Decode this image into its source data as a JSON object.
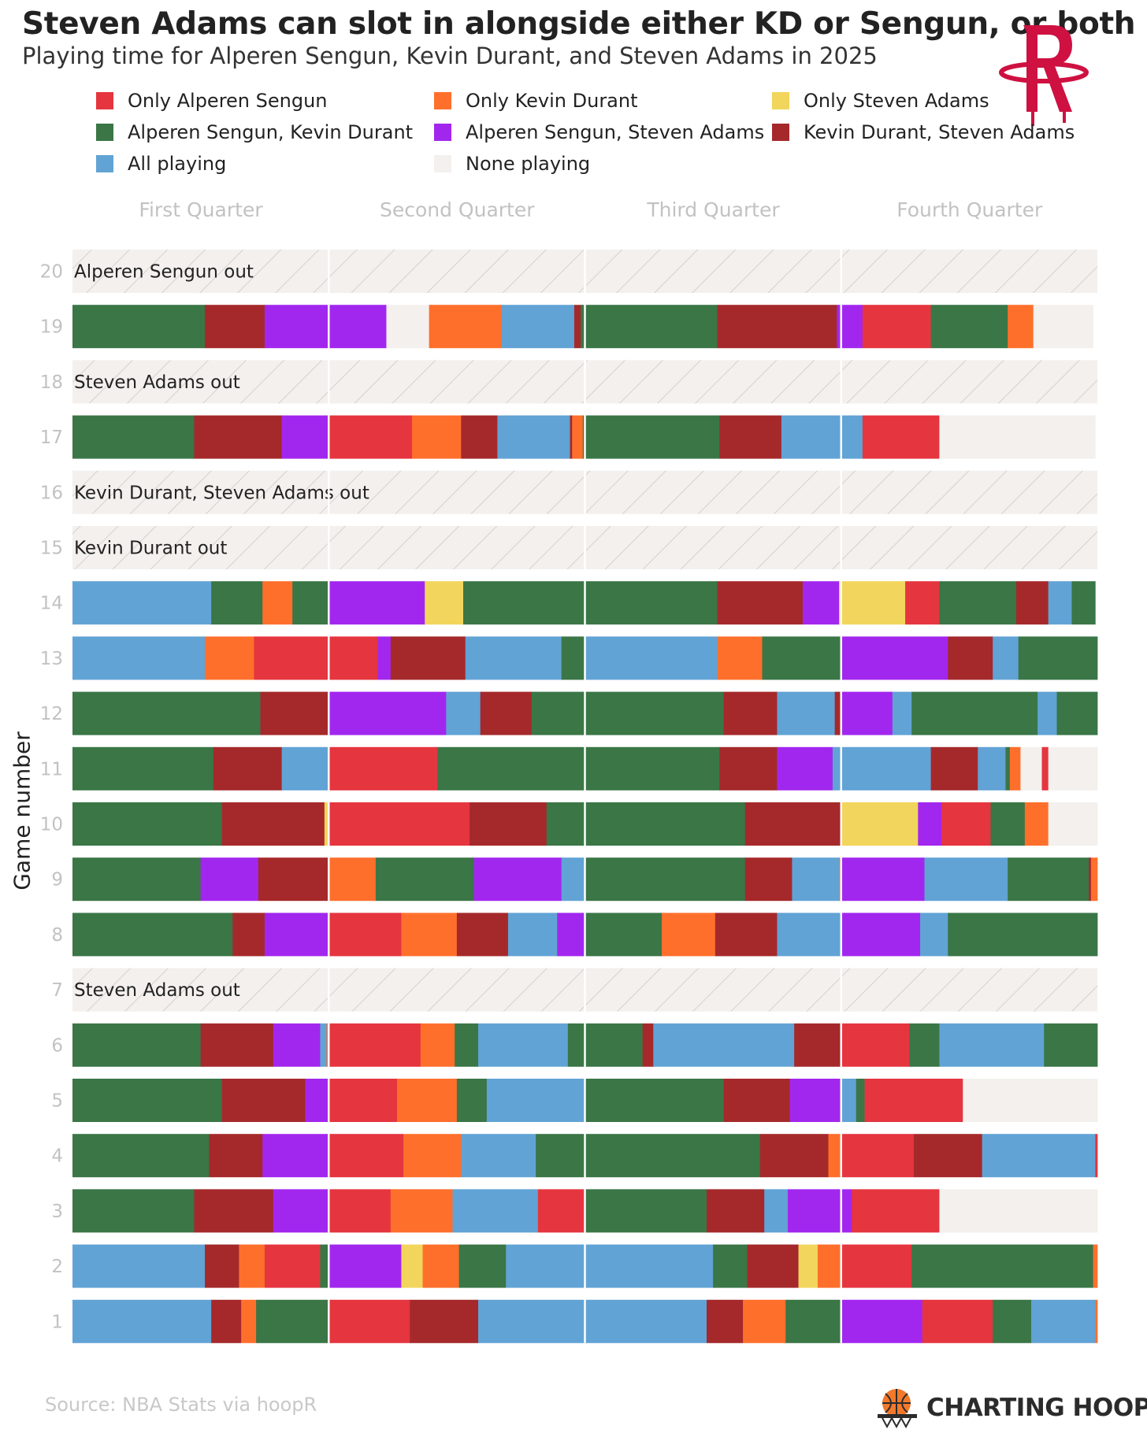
{
  "title": "Steven Adams can slot in alongside either KD or Sengun, or both",
  "subtitle": "Playing time for Alperen Sengun, Kevin Durant, and Steven Adams in 2025",
  "team_logo": "houston-rockets-logo",
  "source": "Source: NBA Stats via hoopR",
  "brand": {
    "name": "CHARTING HOOPS",
    "icon": "basketball-hoop-icon"
  },
  "colors": {
    "sengun": "#e5353f",
    "durant": "#ff6f2c",
    "adams": "#f2d55c",
    "sengun_durant": "#3a7646",
    "sengun_adams": "#a227ee",
    "durant_adams": "#a5292b",
    "all": "#61a3d5",
    "none": "#f3f0ed"
  },
  "chart_data": {
    "type": "stacked-bar-timeline",
    "y_axis_title": "Game number",
    "quarters": [
      "First Quarter",
      "Second Quarter",
      "Third Quarter",
      "Fourth Quarter"
    ],
    "minutes_per_quarter": 12,
    "legend": [
      {
        "key": "S",
        "label": "Only Alperen Sengun",
        "color": "#e5353f"
      },
      {
        "key": "D",
        "label": "Only Kevin Durant",
        "color": "#ff6f2c"
      },
      {
        "key": "A",
        "label": "Only Steven Adams",
        "color": "#f2d55c"
      },
      {
        "key": "SD",
        "label": "Alperen Sengun, Kevin Durant",
        "color": "#3a7646"
      },
      {
        "key": "SA",
        "label": "Alperen Sengun, Steven Adams",
        "color": "#a227ee"
      },
      {
        "key": "DA",
        "label": "Kevin Durant, Steven Adams",
        "color": "#a5292b"
      },
      {
        "key": "ALL",
        "label": "All playing",
        "color": "#61a3d5"
      },
      {
        "key": "N",
        "label": "None playing",
        "color": "#f3f0ed"
      }
    ],
    "games": [
      {
        "game": 20,
        "out": "Alperen Sengun out",
        "segments": []
      },
      {
        "game": 19,
        "segments": [
          [
            "SD",
            6.2
          ],
          [
            "DA",
            2.8
          ],
          [
            "SA",
            3.0
          ],
          [
            "SA",
            2.7
          ],
          [
            "N",
            2.0
          ],
          [
            "D",
            3.4
          ],
          [
            "ALL",
            3.4
          ],
          [
            "DA",
            0.3
          ],
          [
            "SD",
            6.4
          ],
          [
            "DA",
            5.6
          ],
          [
            "SA",
            1.2
          ],
          [
            "S",
            3.2
          ],
          [
            "SD",
            3.6
          ],
          [
            "D",
            1.2
          ],
          [
            "N",
            2.8
          ]
        ]
      },
      {
        "game": 18,
        "out": "Steven Adams out",
        "segments": []
      },
      {
        "game": 17,
        "segments": [
          [
            "SD",
            5.7
          ],
          [
            "DA",
            4.1
          ],
          [
            "SA",
            2.2
          ],
          [
            "S",
            3.9
          ],
          [
            "D",
            2.3
          ],
          [
            "DA",
            1.7
          ],
          [
            "ALL",
            3.4
          ],
          [
            "DA",
            0.1
          ],
          [
            "D",
            0.5
          ],
          [
            "SD",
            6.4
          ],
          [
            "DA",
            2.9
          ],
          [
            "ALL",
            2.7
          ],
          [
            "ALL",
            1.1
          ],
          [
            "S",
            3.6
          ],
          [
            "N",
            7.3
          ]
        ]
      },
      {
        "game": 16,
        "out": "Kevin Durant, Steven Adams out",
        "segments": []
      },
      {
        "game": 15,
        "out": "Kevin Durant out",
        "segments": []
      },
      {
        "game": 14,
        "segments": [
          [
            "ALL",
            6.5
          ],
          [
            "SD",
            2.4
          ],
          [
            "D",
            1.4
          ],
          [
            "SD",
            1.7
          ],
          [
            "SA",
            4.5
          ],
          [
            "A",
            1.8
          ],
          [
            "SD",
            5.6
          ],
          [
            "SD",
            6.3
          ],
          [
            "DA",
            4.0
          ],
          [
            "SA",
            1.7
          ],
          [
            "A",
            3.1
          ],
          [
            "S",
            1.6
          ],
          [
            "SD",
            3.6
          ],
          [
            "DA",
            1.5
          ],
          [
            "ALL",
            1.1
          ],
          [
            "SD",
            1.1
          ]
        ]
      },
      {
        "game": 13,
        "segments": [
          [
            "ALL",
            6.2
          ],
          [
            "D",
            2.3
          ],
          [
            "S",
            3.5
          ],
          [
            "S",
            2.3
          ],
          [
            "SA",
            0.6
          ],
          [
            "DA",
            3.5
          ],
          [
            "ALL",
            4.5
          ],
          [
            "SD",
            1.1
          ],
          [
            "ALL",
            6.2
          ],
          [
            "D",
            2.1
          ],
          [
            "SD",
            3.7
          ],
          [
            "SA",
            5.0
          ],
          [
            "DA",
            2.1
          ],
          [
            "ALL",
            1.2
          ],
          [
            "SD",
            3.7
          ]
        ]
      },
      {
        "game": 12,
        "segments": [
          [
            "SD",
            8.8
          ],
          [
            "DA",
            3.2
          ],
          [
            "SA",
            5.5
          ],
          [
            "ALL",
            1.6
          ],
          [
            "DA",
            2.4
          ],
          [
            "SD",
            2.5
          ],
          [
            "SD",
            6.5
          ],
          [
            "DA",
            2.5
          ],
          [
            "ALL",
            2.7
          ],
          [
            "DA",
            0.3
          ],
          [
            "SA",
            2.4
          ],
          [
            "ALL",
            0.9
          ],
          [
            "SD",
            5.9
          ],
          [
            "ALL",
            0.9
          ],
          [
            "SD",
            1.9
          ]
        ]
      },
      {
        "game": 11,
        "segments": [
          [
            "SD",
            6.6
          ],
          [
            "DA",
            3.2
          ],
          [
            "ALL",
            2.2
          ],
          [
            "S",
            5.1
          ],
          [
            "SD",
            6.9
          ],
          [
            "SD",
            6.3
          ],
          [
            "DA",
            2.7
          ],
          [
            "SA",
            2.6
          ],
          [
            "ALL",
            0.4
          ],
          [
            "ALL",
            4.2
          ],
          [
            "DA",
            2.2
          ],
          [
            "ALL",
            1.3
          ],
          [
            "SD",
            0.2
          ],
          [
            "D",
            0.5
          ],
          [
            "N",
            1.0
          ],
          [
            "S",
            0.3
          ],
          [
            "N",
            2.3
          ]
        ]
      },
      {
        "game": 10,
        "segments": [
          [
            "SD",
            7.0
          ],
          [
            "DA",
            4.8
          ],
          [
            "A",
            0.2
          ],
          [
            "S",
            6.6
          ],
          [
            "DA",
            3.6
          ],
          [
            "SD",
            1.8
          ],
          [
            "SD",
            7.5
          ],
          [
            "DA",
            4.5
          ],
          [
            "A",
            3.6
          ],
          [
            "SA",
            1.1
          ],
          [
            "S",
            2.3
          ],
          [
            "SD",
            1.6
          ],
          [
            "D",
            1.1
          ],
          [
            "N",
            2.3
          ]
        ]
      },
      {
        "game": 9,
        "segments": [
          [
            "SD",
            6.0
          ],
          [
            "SA",
            2.7
          ],
          [
            "DA",
            3.3
          ],
          [
            "D",
            2.2
          ],
          [
            "SD",
            4.6
          ],
          [
            "SA",
            4.1
          ],
          [
            "ALL",
            1.1
          ],
          [
            "SD",
            7.5
          ],
          [
            "DA",
            2.2
          ],
          [
            "ALL",
            2.2
          ],
          [
            "D",
            0.1
          ],
          [
            "SA",
            3.9
          ],
          [
            "ALL",
            3.9
          ],
          [
            "SD",
            3.8
          ],
          [
            "DA",
            0.1
          ],
          [
            "D",
            0.3
          ]
        ]
      },
      {
        "game": 8,
        "segments": [
          [
            "SD",
            7.5
          ],
          [
            "DA",
            1.5
          ],
          [
            "SA",
            3.0
          ],
          [
            "S",
            3.4
          ],
          [
            "D",
            2.6
          ],
          [
            "DA",
            2.4
          ],
          [
            "ALL",
            2.3
          ],
          [
            "SA",
            1.3
          ],
          [
            "SD",
            3.6
          ],
          [
            "D",
            2.5
          ],
          [
            "DA",
            2.9
          ],
          [
            "ALL",
            3.0
          ],
          [
            "SA",
            3.7
          ],
          [
            "ALL",
            1.3
          ],
          [
            "SD",
            7.0
          ]
        ]
      },
      {
        "game": 7,
        "out": "Steven Adams out",
        "segments": []
      },
      {
        "game": 6,
        "segments": [
          [
            "SD",
            6.0
          ],
          [
            "DA",
            3.4
          ],
          [
            "SA",
            2.2
          ],
          [
            "ALL",
            0.3
          ],
          [
            "D",
            0.1
          ],
          [
            "S",
            4.3
          ],
          [
            "D",
            1.6
          ],
          [
            "SD",
            1.1
          ],
          [
            "ALL",
            4.2
          ],
          [
            "SD",
            0.8
          ],
          [
            "SD",
            2.7
          ],
          [
            "DA",
            0.5
          ],
          [
            "ALL",
            6.6
          ],
          [
            "DA",
            2.2
          ],
          [
            "S",
            3.2
          ],
          [
            "SD",
            1.4
          ],
          [
            "ALL",
            4.9
          ],
          [
            "SD",
            2.5
          ]
        ]
      },
      {
        "game": 5,
        "segments": [
          [
            "SD",
            7.0
          ],
          [
            "DA",
            3.9
          ],
          [
            "SA",
            1.1
          ],
          [
            "S",
            3.2
          ],
          [
            "D",
            2.8
          ],
          [
            "SD",
            1.4
          ],
          [
            "ALL",
            4.6
          ],
          [
            "SD",
            6.5
          ],
          [
            "DA",
            3.1
          ],
          [
            "SA",
            2.4
          ],
          [
            "ALL",
            0.7
          ],
          [
            "SD",
            0.4
          ],
          [
            "S",
            4.6
          ],
          [
            "N",
            6.3
          ]
        ]
      },
      {
        "game": 4,
        "segments": [
          [
            "SD",
            6.4
          ],
          [
            "DA",
            2.5
          ],
          [
            "SA",
            3.1
          ],
          [
            "S",
            3.5
          ],
          [
            "D",
            2.7
          ],
          [
            "ALL",
            3.5
          ],
          [
            "SD",
            2.3
          ],
          [
            "SD",
            8.2
          ],
          [
            "DA",
            3.2
          ],
          [
            "D",
            0.6
          ],
          [
            "S",
            3.4
          ],
          [
            "DA",
            3.2
          ],
          [
            "ALL",
            5.3
          ],
          [
            "S",
            0.1
          ]
        ]
      },
      {
        "game": 3,
        "segments": [
          [
            "SD",
            5.7
          ],
          [
            "DA",
            3.7
          ],
          [
            "SA",
            2.6
          ],
          [
            "S",
            2.9
          ],
          [
            "D",
            2.9
          ],
          [
            "ALL",
            4.0
          ],
          [
            "S",
            2.2
          ],
          [
            "SD",
            5.7
          ],
          [
            "DA",
            2.7
          ],
          [
            "ALL",
            1.1
          ],
          [
            "SA",
            2.5
          ],
          [
            "SA",
            0.5
          ],
          [
            "S",
            4.1
          ],
          [
            "N",
            7.4
          ]
        ]
      },
      {
        "game": 2,
        "segments": [
          [
            "ALL",
            6.2
          ],
          [
            "DA",
            1.6
          ],
          [
            "D",
            1.2
          ],
          [
            "S",
            2.6
          ],
          [
            "SD",
            0.4
          ],
          [
            "SA",
            3.4
          ],
          [
            "A",
            1.0
          ],
          [
            "D",
            1.7
          ],
          [
            "SD",
            2.2
          ],
          [
            "ALL",
            3.7
          ],
          [
            "ALL",
            6.0
          ],
          [
            "SD",
            1.6
          ],
          [
            "DA",
            2.4
          ],
          [
            "A",
            0.9
          ],
          [
            "D",
            1.1
          ],
          [
            "S",
            3.3
          ],
          [
            "SD",
            8.5
          ],
          [
            "D",
            0.2
          ]
        ]
      },
      {
        "game": 1,
        "segments": [
          [
            "ALL",
            6.5
          ],
          [
            "DA",
            1.4
          ],
          [
            "D",
            0.7
          ],
          [
            "SD",
            3.4
          ],
          [
            "S",
            3.8
          ],
          [
            "DA",
            3.2
          ],
          [
            "ALL",
            5.0
          ],
          [
            "ALL",
            5.7
          ],
          [
            "DA",
            1.7
          ],
          [
            "D",
            2.0
          ],
          [
            "SD",
            2.6
          ],
          [
            "SA",
            3.8
          ],
          [
            "S",
            3.3
          ],
          [
            "SD",
            1.8
          ],
          [
            "ALL",
            3.0
          ],
          [
            "D",
            0.1
          ]
        ]
      }
    ]
  }
}
